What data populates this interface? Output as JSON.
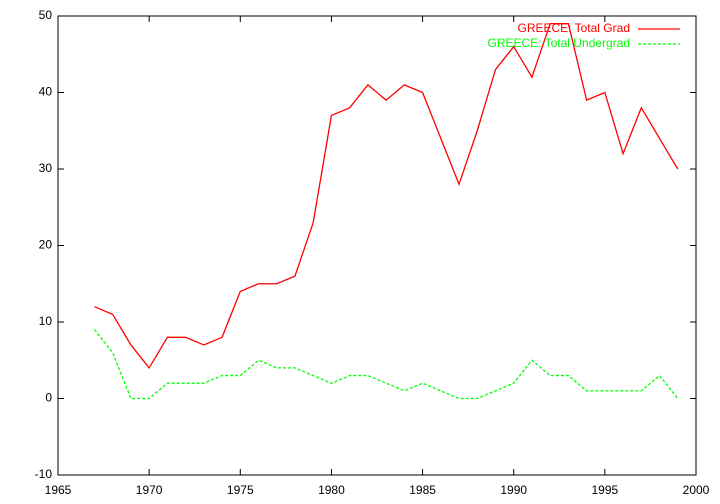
{
  "chart_data": {
    "type": "line",
    "x": [
      1967,
      1968,
      1969,
      1970,
      1971,
      1972,
      1973,
      1974,
      1975,
      1976,
      1977,
      1978,
      1979,
      1980,
      1981,
      1982,
      1983,
      1984,
      1985,
      1986,
      1987,
      1988,
      1989,
      1990,
      1991,
      1992,
      1993,
      1994,
      1995,
      1996,
      1997,
      1998,
      1999
    ],
    "series": [
      {
        "name": "GREECE: Total Grad",
        "color": "#ff0000",
        "dash": false,
        "values": [
          12,
          11,
          7,
          4,
          8,
          8,
          7,
          8,
          14,
          15,
          15,
          16,
          23,
          37,
          38,
          41,
          39,
          41,
          40,
          34,
          28,
          35,
          43,
          46,
          42,
          49,
          49,
          39,
          40,
          32,
          38,
          34,
          30
        ]
      },
      {
        "name": "GREECE: Total Undergrad",
        "color": "#00ff00",
        "dash": true,
        "values": [
          9,
          6,
          0,
          0,
          2,
          2,
          2,
          3,
          3,
          5,
          4,
          4,
          3,
          2,
          3,
          3,
          2,
          1,
          2,
          1,
          0,
          0,
          1,
          2,
          5,
          3,
          3,
          1,
          1,
          1,
          1,
          3,
          0
        ]
      }
    ],
    "xlim": [
      1965,
      2000
    ],
    "xticks": [
      1965,
      1970,
      1975,
      1980,
      1985,
      1990,
      1995,
      2000
    ],
    "ylim": [
      -10,
      50
    ],
    "yticks": [
      -10,
      0,
      10,
      20,
      30,
      40,
      50
    ],
    "legend": "top-right",
    "grid": false
  }
}
